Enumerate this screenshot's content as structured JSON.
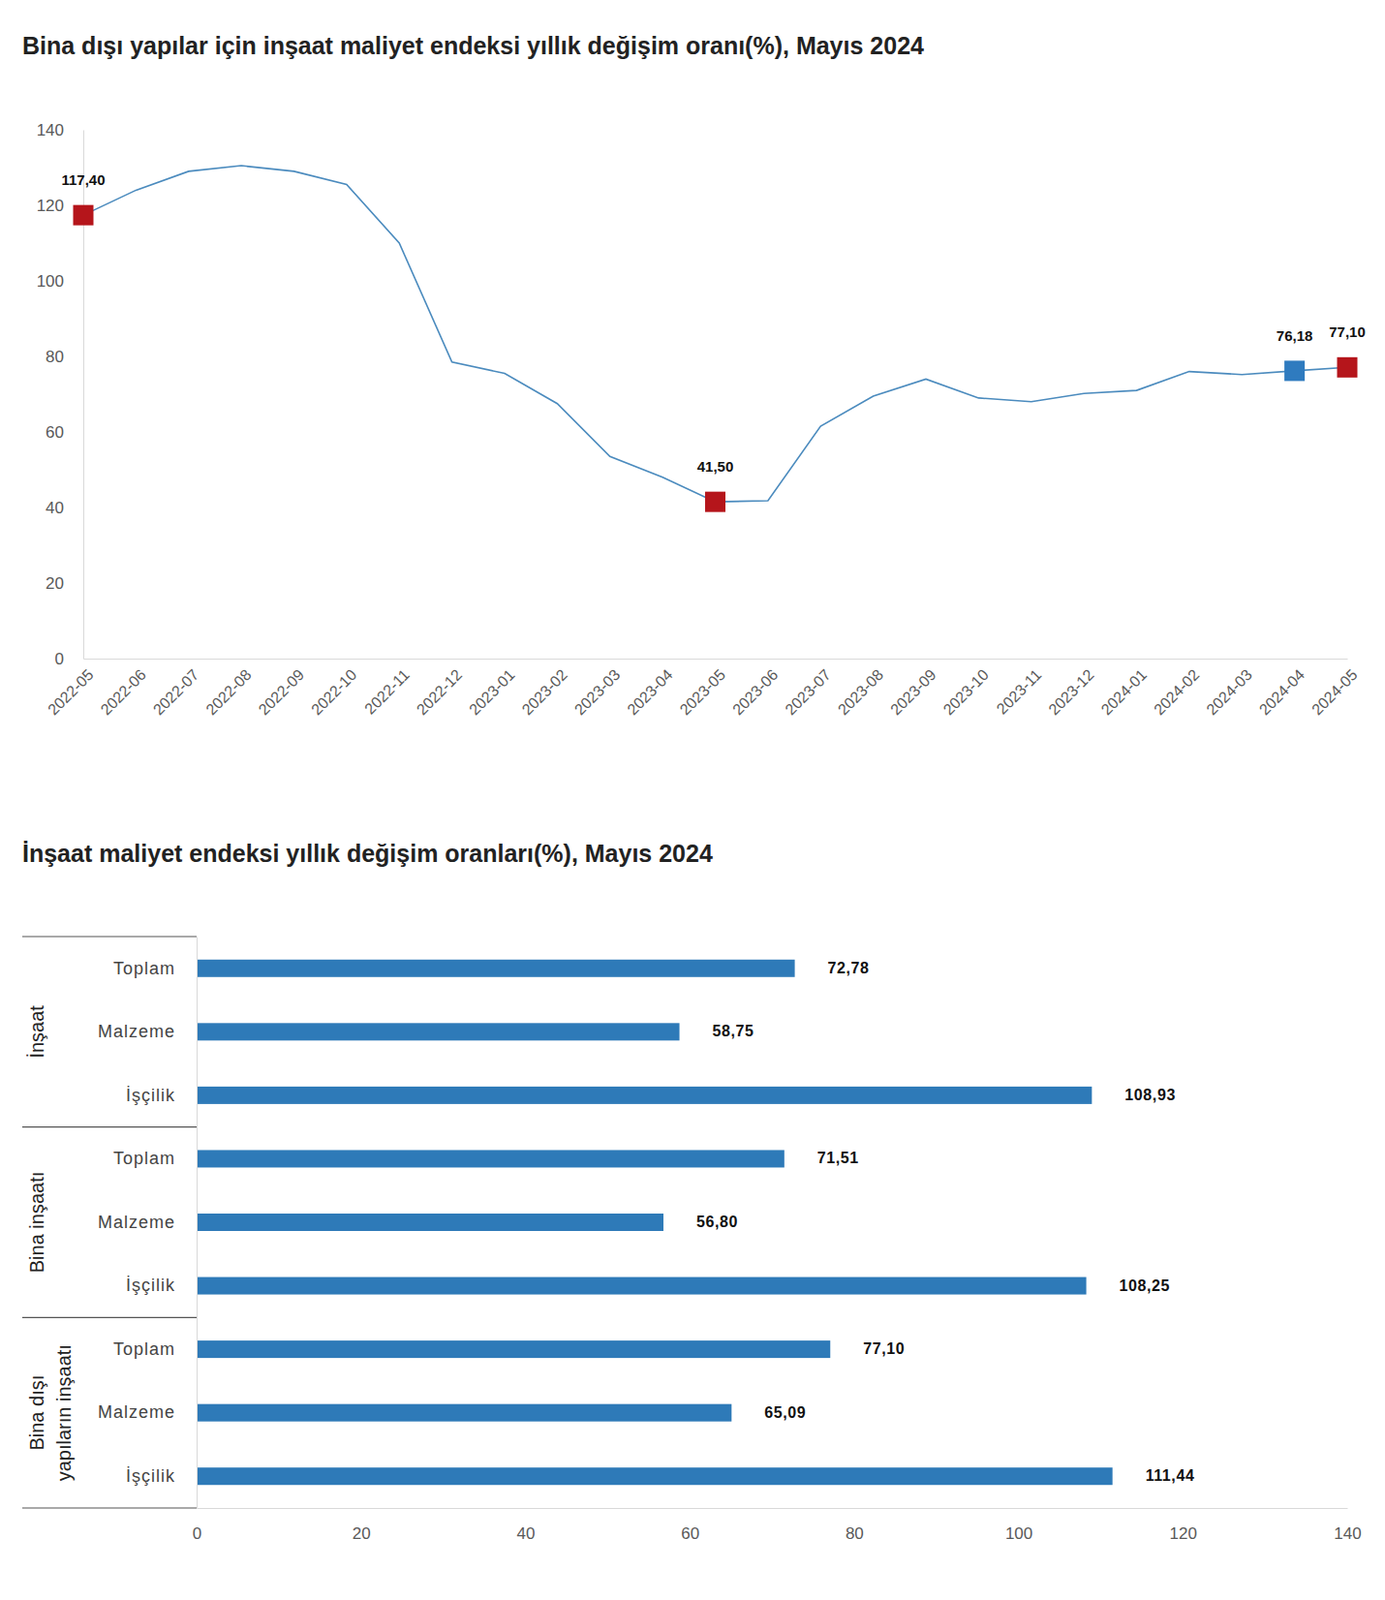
{
  "chart_data": [
    {
      "type": "line",
      "title": "Bina dışı yapılar için inşaat maliyet endeksi yıllık değişim oranı(%), Mayıs 2024",
      "categories": [
        "2022-05",
        "2022-06",
        "2022-07",
        "2022-08",
        "2022-09",
        "2022-10",
        "2022-11",
        "2022-12",
        "2023-01",
        "2023-02",
        "2023-03",
        "2023-04",
        "2023-05",
        "2023-06",
        "2023-07",
        "2023-08",
        "2023-09",
        "2023-10",
        "2023-11",
        "2023-12",
        "2024-01",
        "2024-02",
        "2024-03",
        "2024-04",
        "2024-05"
      ],
      "values": [
        117.4,
        124,
        129,
        130.5,
        129,
        125.5,
        110,
        78.5,
        75.5,
        67.5,
        53.5,
        48,
        41.5,
        41.8,
        61.5,
        69.5,
        74,
        69,
        68,
        70.2,
        71,
        76,
        75.2,
        76.18,
        77.1
      ],
      "value_labels": [
        "117,40",
        null,
        null,
        null,
        null,
        null,
        null,
        null,
        null,
        null,
        null,
        null,
        "41,50",
        null,
        null,
        null,
        null,
        null,
        null,
        null,
        null,
        null,
        null,
        "76,18",
        "77,10"
      ],
      "color": "#4b8bbe",
      "colors": [
        "#b5151b",
        null,
        null,
        null,
        null,
        null,
        null,
        null,
        null,
        null,
        null,
        null,
        "#b5151b",
        null,
        null,
        null,
        null,
        null,
        null,
        null,
        null,
        null,
        null,
        "#2f7bbf",
        "#b5151b"
      ],
      "marker": "square",
      "ylim": [
        0,
        140
      ],
      "yticks": [
        0,
        20,
        40,
        60,
        80,
        100,
        120,
        140
      ],
      "grid": false,
      "data_labels": true
    },
    {
      "type": "bar",
      "title": "İnşaat maliyet endeksi yıllık değişim oranları(%), Mayıs 2024",
      "orientation": "horizontal",
      "groups": [
        "İnşaat",
        "Bina inşaatı",
        "Bina dışı yapıların inşaatı"
      ],
      "categories": [
        "Toplam",
        "Malzeme",
        "İşçilik",
        "Toplam",
        "Malzeme",
        "İşçilik",
        "Toplam",
        "Malzeme",
        "İşçilik"
      ],
      "values": [
        72.78,
        58.75,
        108.93,
        71.51,
        56.8,
        108.25,
        77.1,
        65.09,
        111.44
      ],
      "value_labels": [
        "72,78",
        "58,75",
        "108,93",
        "71,51",
        "56,80",
        "108,25",
        "77,10",
        "65,09",
        "111,44"
      ],
      "color": "#2e7ab8",
      "xlim": [
        0,
        140
      ],
      "xticks": [
        0,
        20,
        40,
        60,
        80,
        100,
        120,
        140
      ],
      "grid": false,
      "data_labels": true
    }
  ]
}
